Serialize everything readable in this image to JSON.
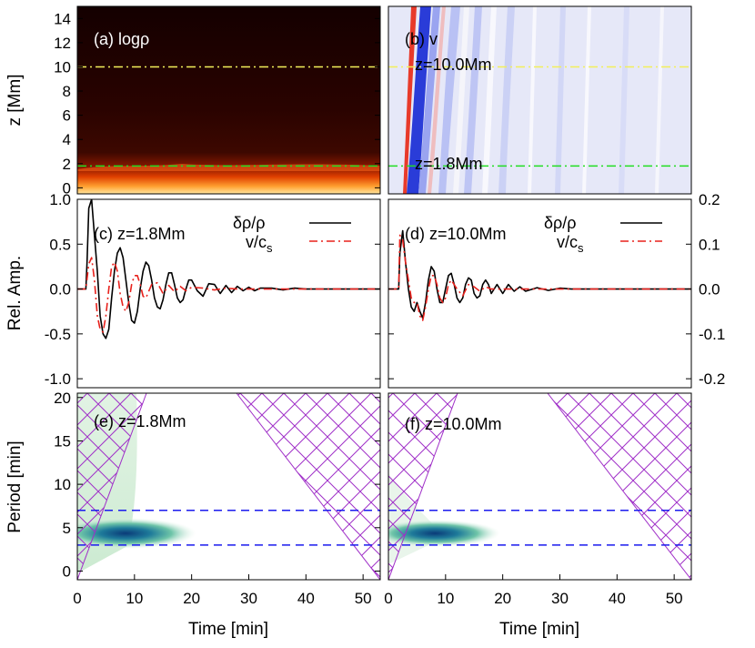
{
  "chart_data": [
    {
      "panel": "a",
      "type": "heatmap",
      "label": "(a) logρ",
      "xlim": [
        0,
        53
      ],
      "ylim": [
        -0.5,
        15
      ],
      "ylabel": "z [Mm]",
      "yticks": [
        "0",
        "2",
        "4",
        "6",
        "8",
        "10",
        "12",
        "14"
      ],
      "ytick_values": [
        0,
        2,
        4,
        6,
        8,
        10,
        12,
        14
      ],
      "reference_lines": [
        {
          "z": 10.0,
          "color": "#f2ef5a",
          "style": "dash-dot"
        },
        {
          "z": 1.8,
          "color": "#22dd22",
          "style": "dash-dot"
        }
      ]
    },
    {
      "panel": "b",
      "type": "heatmap",
      "label": "(b) v",
      "xlim": [
        0,
        53
      ],
      "ylim": [
        -0.5,
        15
      ],
      "reference_lines": [
        {
          "z": 10.0,
          "label": "z=10.0Mm",
          "color": "#f2ef5a",
          "style": "dash-dot"
        },
        {
          "z": 1.8,
          "label": "z=1.8Mm",
          "color": "#22dd22",
          "style": "dash-dot"
        }
      ]
    },
    {
      "panel": "c",
      "type": "line",
      "label": "(c) z=1.8Mm",
      "xlim": [
        0,
        53
      ],
      "ylim": [
        -1.1,
        1.0
      ],
      "ylabel": "Rel. Amp.",
      "yticks": [
        "-1.0",
        "-0.5",
        "0.0",
        "0.5",
        "1.0"
      ],
      "ytick_values": [
        -1.0,
        -0.5,
        0.0,
        0.5,
        1.0
      ],
      "series": [
        {
          "name": "δρ/ρ",
          "color": "#000000",
          "style": "solid",
          "x": [
            0,
            1.5,
            1.7,
            2.0,
            2.5,
            3.0,
            3.5,
            4.0,
            4.5,
            5.0,
            5.5,
            6.0,
            6.5,
            7.0,
            7.5,
            8.0,
            8.5,
            9.0,
            9.5,
            10.0,
            10.5,
            11.0,
            11.5,
            12.0,
            12.5,
            13.0,
            13.5,
            14.0,
            14.5,
            15.0,
            15.5,
            16.0,
            16.5,
            17.0,
            17.5,
            18.0,
            18.5,
            19.0,
            19.5,
            20.0,
            21.0,
            22.0,
            23.0,
            24.0,
            25.0,
            26.0,
            27.0,
            28.0,
            29.0,
            30.0,
            31.0,
            32.0,
            34.0,
            36.0,
            38.0,
            40.0,
            44.0,
            48.0,
            53.0
          ],
          "y": [
            0,
            0,
            0.3,
            0.9,
            1.0,
            0.6,
            0.2,
            -0.3,
            -0.5,
            -0.55,
            -0.45,
            -0.1,
            0.2,
            0.4,
            0.46,
            0.35,
            0.1,
            -0.15,
            -0.35,
            -0.38,
            -0.25,
            0.0,
            0.2,
            0.3,
            0.26,
            0.1,
            -0.1,
            -0.2,
            -0.22,
            -0.12,
            0.05,
            0.18,
            0.18,
            0.05,
            -0.1,
            -0.15,
            -0.12,
            0.0,
            0.1,
            0.1,
            -0.02,
            -0.08,
            0.06,
            0.05,
            -0.05,
            0.04,
            -0.04,
            0.03,
            -0.02,
            0.02,
            -0.02,
            0.01,
            0.01,
            -0.01,
            0.01,
            0.0,
            0.0,
            0.0,
            0.0
          ]
        },
        {
          "name": "v/cs",
          "color": "#e8211c",
          "style": "dash-dot",
          "x": [
            0,
            1.5,
            2.0,
            2.5,
            3.0,
            3.5,
            4.0,
            4.5,
            5.0,
            5.5,
            6.0,
            6.5,
            7.0,
            7.5,
            8.0,
            8.5,
            9.0,
            9.5,
            10.0,
            10.5,
            11.0,
            11.5,
            12.0,
            13.0,
            14.0,
            15.0,
            16.0,
            17.0,
            18.0,
            19.0,
            20.0,
            22.0,
            24.0,
            26.0,
            28.0,
            30.0,
            35.0,
            40.0,
            53.0
          ],
          "y": [
            0,
            0,
            0.28,
            0.35,
            0.1,
            -0.3,
            -0.45,
            -0.48,
            -0.3,
            0.0,
            0.25,
            0.3,
            0.2,
            -0.05,
            -0.2,
            -0.25,
            -0.15,
            0.05,
            0.15,
            0.15,
            0.05,
            -0.08,
            -0.1,
            0.05,
            0.07,
            -0.05,
            0.04,
            -0.03,
            0.03,
            -0.02,
            0.02,
            0.01,
            -0.01,
            0.01,
            0.0,
            0.0,
            0.0,
            0.0,
            0.0
          ]
        }
      ]
    },
    {
      "panel": "d",
      "type": "line",
      "label": "(d) z=10.0Mm",
      "xlim": [
        0,
        53
      ],
      "ylim": [
        -0.22,
        0.2
      ],
      "yticks": [
        "-0.2",
        "-0.1",
        "0.0",
        "0.1",
        "0.2"
      ],
      "ytick_values": [
        -0.2,
        -0.1,
        0.0,
        0.1,
        0.2
      ],
      "series": [
        {
          "name": "δρ/ρ",
          "color": "#000000",
          "style": "solid",
          "x": [
            0,
            1.8,
            2.0,
            2.5,
            3.0,
            3.5,
            4.0,
            4.5,
            5.0,
            5.5,
            6.0,
            6.5,
            7.0,
            7.5,
            8.0,
            8.5,
            9.0,
            9.5,
            10.0,
            10.5,
            11.0,
            11.5,
            12.0,
            12.5,
            13.0,
            13.5,
            14.0,
            14.5,
            15.0,
            15.5,
            16.0,
            16.5,
            17.0,
            17.5,
            18.0,
            19.0,
            20.0,
            21.0,
            22.0,
            23.0,
            24.0,
            26.0,
            28.0,
            30.0,
            32.0,
            36.0,
            40.0,
            45.0,
            53.0
          ],
          "y": [
            0,
            0,
            0.08,
            0.13,
            0.06,
            0.0,
            -0.04,
            -0.05,
            -0.03,
            -0.05,
            -0.065,
            -0.03,
            0.02,
            0.05,
            0.04,
            0.0,
            -0.03,
            -0.03,
            0.0,
            0.03,
            0.035,
            0.01,
            -0.02,
            -0.03,
            -0.02,
            0.01,
            0.025,
            0.02,
            -0.01,
            -0.02,
            -0.015,
            0.01,
            0.02,
            0.01,
            -0.01,
            0.01,
            -0.01,
            0.01,
            -0.005,
            0.005,
            -0.005,
            0.003,
            -0.003,
            0.002,
            0.0,
            0.0,
            0.0,
            0.0,
            0.0
          ]
        },
        {
          "name": "v/cs",
          "color": "#e8211c",
          "style": "dash-dot",
          "x": [
            0,
            1.8,
            2.0,
            2.5,
            3.0,
            3.5,
            4.0,
            4.5,
            5.0,
            5.5,
            6.0,
            6.5,
            7.0,
            7.5,
            8.0,
            8.5,
            9.0,
            9.5,
            10.0,
            10.5,
            11.0,
            12.0,
            13.0,
            14.0,
            15.0,
            16.0,
            17.0,
            18.0,
            20.0,
            22.0,
            25.0,
            30.0,
            53.0
          ],
          "y": [
            0,
            0,
            0.12,
            0.11,
            0.06,
            0.02,
            -0.02,
            -0.03,
            -0.03,
            -0.06,
            -0.07,
            -0.04,
            0.0,
            0.03,
            0.03,
            0.01,
            -0.02,
            -0.03,
            -0.02,
            0.01,
            0.02,
            0.0,
            -0.015,
            0.01,
            0.005,
            -0.005,
            0.005,
            0.0,
            0.0,
            0.0,
            0.0,
            0.0,
            0.0
          ]
        }
      ]
    },
    {
      "panel": "e",
      "type": "heatmap",
      "label": "(e) z=1.8Mm",
      "xlim": [
        0,
        53
      ],
      "ylim": [
        -1,
        20.5
      ],
      "xlabel": "Time [min]",
      "ylabel": "Period [min]",
      "xticks": [
        "0",
        "10",
        "20",
        "30",
        "40",
        "50"
      ],
      "xtick_values": [
        0,
        10,
        20,
        30,
        40,
        50
      ],
      "yticks": [
        "0",
        "5",
        "10",
        "15",
        "20"
      ],
      "ytick_values": [
        0,
        5,
        10,
        15,
        20
      ],
      "reference_lines": [
        {
          "period": 7.0,
          "color": "#1a1aee",
          "style": "dashed"
        },
        {
          "period": 3.0,
          "color": "#1a1aee",
          "style": "dashed"
        }
      ],
      "power_peak": {
        "time": 6,
        "period": 5
      }
    },
    {
      "panel": "f",
      "type": "heatmap",
      "label": "(f) z=10.0Mm",
      "xlim": [
        0,
        53
      ],
      "ylim": [
        -1,
        20.5
      ],
      "xlabel": "Time [min]",
      "xticks": [
        "0",
        "10",
        "20",
        "30",
        "40",
        "50"
      ],
      "xtick_values": [
        0,
        10,
        20,
        30,
        40,
        50
      ],
      "reference_lines": [
        {
          "period": 7.0,
          "color": "#1a1aee",
          "style": "dashed"
        },
        {
          "period": 3.0,
          "color": "#1a1aee",
          "style": "dashed"
        }
      ],
      "power_peak": {
        "time": 6,
        "period": 5
      }
    }
  ],
  "legend": {
    "rho": "δρ/ρ",
    "v": "v/c",
    "v_sub": "s"
  }
}
